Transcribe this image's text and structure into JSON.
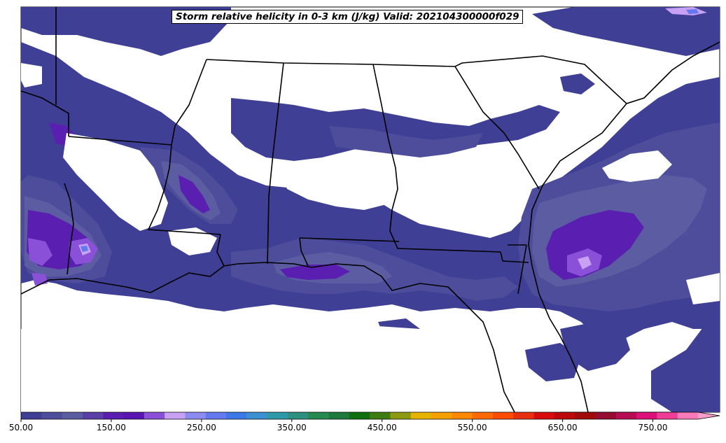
{
  "title": "Storm relative helicity in 0-3 km (J/kg) Valid: 202104300000f029",
  "colorbar": {
    "tick_labels": [
      "50.00",
      "150.00",
      "250.00",
      "350.00",
      "450.00",
      "550.00",
      "650.00",
      "750.00"
    ],
    "colors": [
      "#3f3f96",
      "#4d4d9c",
      "#5c5ca2",
      "#5a3fa6",
      "#5a1fb0",
      "#5a14b4",
      "#8a50d8",
      "#c8a0f4",
      "#8c8cf0",
      "#6478f0",
      "#3c78e8",
      "#3a90d0",
      "#2e9aa8",
      "#2e9080",
      "#268a50",
      "#1e7a3c",
      "#107010",
      "#3c7c10",
      "#8c9a10",
      "#e6b400",
      "#f6a000",
      "#ff8800",
      "#ff6a00",
      "#ff4c00",
      "#e83010",
      "#d80c0c",
      "#bc0808",
      "#a00a0a",
      "#960c30",
      "#b80c52",
      "#dc1078",
      "#ef3c96",
      "#fa7ab8"
    ],
    "extend": "max"
  },
  "legend": {
    "variable": "Storm relative helicity",
    "layer": "0-3 km",
    "units": "J/kg",
    "range": [
      50,
      800
    ]
  }
}
